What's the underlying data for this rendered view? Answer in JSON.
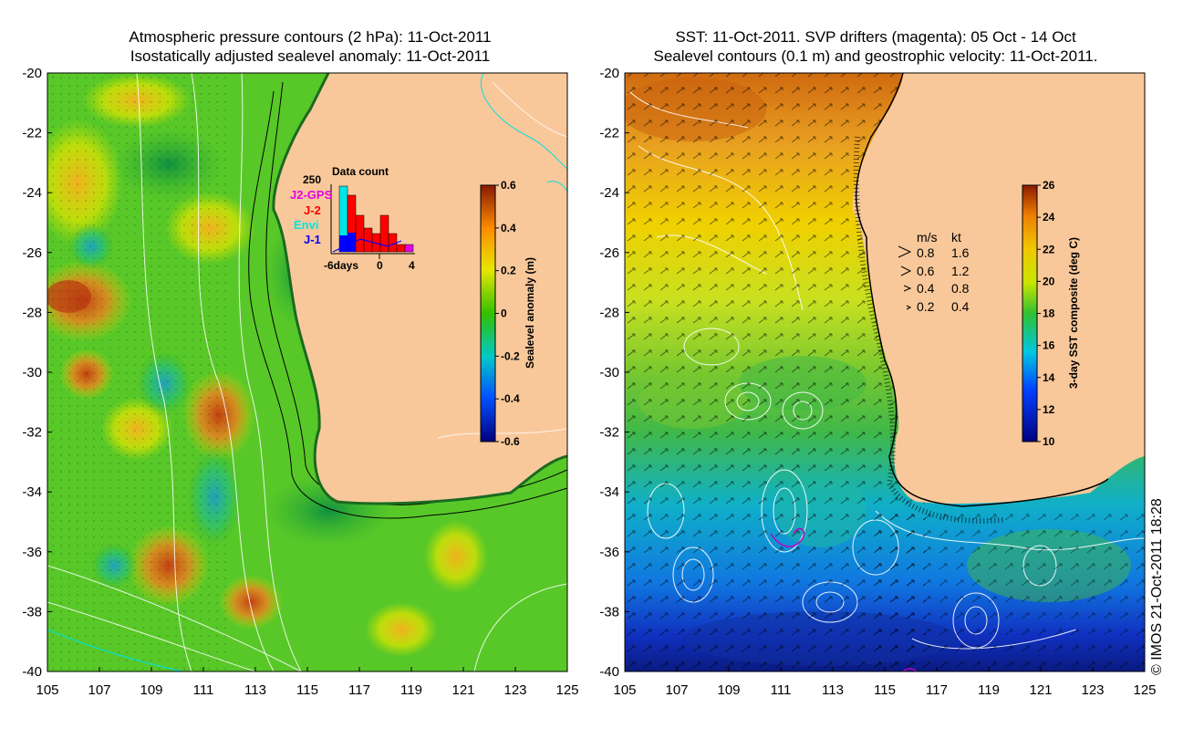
{
  "left_title": {
    "line1": "Atmospheric pressure contours (2 hPa): 11-Oct-2011",
    "line2": "Isostatically adjusted sealevel anomaly: 11-Oct-2011"
  },
  "right_title": {
    "line1": "SST: 11-Oct-2011. SVP drifters (magenta): 05 Oct - 14 Oct",
    "line2": "Sealevel contours (0.1 m) and geostrophic velocity: 11-Oct-2011."
  },
  "axes": {
    "lat_ticks": [
      "-20",
      "-22",
      "-24",
      "-26",
      "-28",
      "-30",
      "-32",
      "-34",
      "-36",
      "-38",
      "-40"
    ],
    "lon_ticks": [
      "105",
      "107",
      "109",
      "111",
      "113",
      "115",
      "117",
      "119",
      "121",
      "123",
      "125"
    ]
  },
  "left_colorbar": {
    "label": "Sealevel anomaly (m)",
    "ticks": [
      "0.6",
      "0.4",
      "0.2",
      "0",
      "-0.2",
      "-0.4",
      "-0.6"
    ]
  },
  "right_colorbar": {
    "label": "3-day SST composite (deg C)",
    "ticks": [
      "26",
      "24",
      "22",
      "20",
      "18",
      "16",
      "14",
      "12",
      "10"
    ]
  },
  "data_count": {
    "title": "Data count",
    "ymax": "250",
    "xlabel_left": "-6days",
    "xlabel_zero": "0",
    "xlabel_right": "4",
    "missions": [
      {
        "name": "J2-GPS",
        "color": "#e600e6"
      },
      {
        "name": "J-2",
        "color": "#ff0000"
      },
      {
        "name": "Envi",
        "color": "#00e5e5"
      },
      {
        "name": "J-1",
        "color": "#0000ff"
      }
    ]
  },
  "velocity_legend": {
    "header_ms": "m/s",
    "header_kt": "kt",
    "rows": [
      {
        "ms": "0.8",
        "kt": "1.6"
      },
      {
        "ms": "0.6",
        "kt": "1.2"
      },
      {
        "ms": "0.4",
        "kt": "0.8"
      },
      {
        "ms": "0.2",
        "kt": "0.4"
      }
    ]
  },
  "credit": "© IMOS 21-Oct-2011 18:28",
  "colors": {
    "land": "#f9c89a",
    "coast": "#000000",
    "drifter": "#c000c0"
  }
}
